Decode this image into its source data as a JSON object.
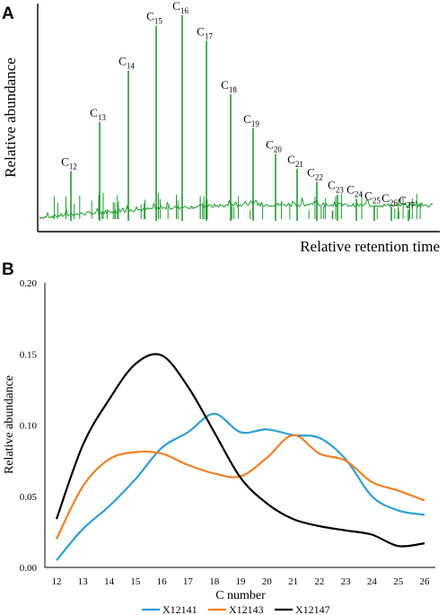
{
  "chart_data": [
    {
      "panel": "A",
      "type": "line",
      "xlabel": "Relative retention time",
      "ylabel": "Relative abundance",
      "peak_labels": [
        "12",
        "13",
        "14",
        "15",
        "16",
        "17",
        "18",
        "19",
        "20",
        "21",
        "22",
        "23",
        "24",
        "25",
        "26",
        "27"
      ],
      "peak_label_prefix": "C",
      "peak_heights": [
        0.25,
        0.48,
        0.72,
        0.93,
        0.98,
        0.86,
        0.61,
        0.45,
        0.33,
        0.26,
        0.2,
        0.14,
        0.12,
        0.09,
        0.08,
        0.07
      ],
      "series_color": "#1f9b2e"
    },
    {
      "panel": "B",
      "type": "line",
      "title": "",
      "xlabel": "C number",
      "ylabel": "Relative abundance",
      "categories": [
        "12",
        "13",
        "14",
        "15",
        "16",
        "17",
        "18",
        "19",
        "20",
        "21",
        "22",
        "23",
        "24",
        "25",
        "26"
      ],
      "yticks": [
        "0.00",
        "0.05",
        "0.10",
        "0.15",
        "0.20"
      ],
      "ylim": [
        0,
        0.2
      ],
      "grid": false,
      "legend_position": "bottom",
      "series": [
        {
          "name": "X12141",
          "color": "#2e9fd6",
          "values": [
            0.005,
            0.027,
            0.043,
            0.062,
            0.084,
            0.095,
            0.108,
            0.095,
            0.097,
            0.093,
            0.091,
            0.076,
            0.05,
            0.04,
            0.037
          ]
        },
        {
          "name": "X12143",
          "color": "#f07f25",
          "values": [
            0.02,
            0.057,
            0.076,
            0.081,
            0.08,
            0.072,
            0.066,
            0.064,
            0.077,
            0.093,
            0.08,
            0.075,
            0.06,
            0.054,
            0.047
          ]
        },
        {
          "name": "X12147",
          "color": "#000000",
          "values": [
            0.034,
            0.086,
            0.118,
            0.143,
            0.149,
            0.127,
            0.095,
            0.063,
            0.045,
            0.034,
            0.029,
            0.026,
            0.023,
            0.015,
            0.017
          ]
        }
      ]
    }
  ]
}
